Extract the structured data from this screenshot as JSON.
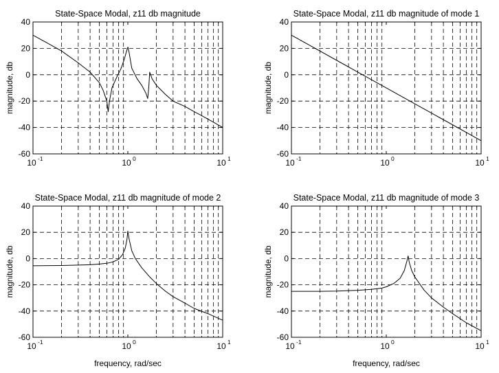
{
  "chart_data": [
    {
      "type": "line",
      "title": "State-Space Modal, z11 db magnitude",
      "xlabel": "",
      "ylabel": "magnitude, db",
      "xscale": "log",
      "xlim": [
        0.1,
        10
      ],
      "ylim": [
        -60,
        40
      ],
      "yticks": [
        -60,
        -40,
        -20,
        0,
        20,
        40
      ],
      "grid": true,
      "series": [
        {
          "x": [
            0.1,
            0.15,
            0.2,
            0.3,
            0.4,
            0.5,
            0.55,
            0.6,
            0.62,
            0.64,
            0.68,
            0.75,
            0.85,
            0.92,
            0.97,
            1.0,
            1.03,
            1.1,
            1.25,
            1.4,
            1.55,
            1.62,
            1.66,
            1.7,
            1.8,
            2.0,
            2.5,
            3,
            4,
            5,
            6,
            8,
            10
          ],
          "y": [
            30,
            23,
            18,
            9,
            2,
            -6,
            -12,
            -20,
            -28,
            -20,
            -10,
            -3,
            5,
            12,
            18,
            21,
            17,
            5,
            -3,
            -8,
            -14,
            -18,
            -10,
            2,
            -3,
            -8,
            -15,
            -20,
            -24,
            -28,
            -31,
            -36,
            -40
          ]
        }
      ]
    },
    {
      "type": "line",
      "title": "State-Space Modal, z11 db magnitude of mode 1",
      "xlabel": "",
      "ylabel": "magnitude, db",
      "xscale": "log",
      "xlim": [
        0.1,
        10
      ],
      "ylim": [
        -60,
        40
      ],
      "yticks": [
        -60,
        -40,
        -20,
        0,
        20,
        40
      ],
      "grid": true,
      "series": [
        {
          "x": [
            0.1,
            10
          ],
          "y": [
            30,
            -50
          ]
        }
      ]
    },
    {
      "type": "line",
      "title": "State-Space Modal, z11 db magnitude of mode 2",
      "xlabel": "frequency, rad/sec",
      "ylabel": "magnitude, db",
      "xscale": "log",
      "xlim": [
        0.1,
        10
      ],
      "ylim": [
        -60,
        40
      ],
      "yticks": [
        -60,
        -40,
        -20,
        0,
        20,
        40
      ],
      "grid": true,
      "series": [
        {
          "x": [
            0.1,
            0.2,
            0.3,
            0.4,
            0.5,
            0.6,
            0.7,
            0.8,
            0.88,
            0.94,
            0.98,
            1.0,
            1.03,
            1.1,
            1.2,
            1.4,
            1.7,
            2,
            2.5,
            3,
            4,
            5,
            7,
            10
          ],
          "y": [
            -5.5,
            -5.3,
            -5.0,
            -4.7,
            -4.2,
            -3.6,
            -2.5,
            -0.5,
            3,
            8,
            15,
            21,
            15,
            6,
            0,
            -7,
            -14,
            -19,
            -25,
            -29,
            -34,
            -38,
            -42,
            -47
          ]
        }
      ]
    },
    {
      "type": "line",
      "title": "State-Space Modal, z11 db magnitude of mode 3",
      "xlabel": "frequency, rad/sec",
      "ylabel": "magnitude, db",
      "xscale": "log",
      "xlim": [
        0.1,
        10
      ],
      "ylim": [
        -60,
        40
      ],
      "yticks": [
        -60,
        -40,
        -20,
        0,
        20,
        40
      ],
      "grid": true,
      "series": [
        {
          "x": [
            0.1,
            0.2,
            0.3,
            0.5,
            0.7,
            0.9,
            1.0,
            1.2,
            1.4,
            1.55,
            1.65,
            1.7,
            1.75,
            1.85,
            2.0,
            2.5,
            3,
            4,
            5,
            7,
            10
          ],
          "y": [
            -25,
            -25,
            -24.8,
            -24.2,
            -23.5,
            -22.5,
            -21.5,
            -19,
            -15,
            -9,
            -2,
            2,
            -3,
            -9,
            -14,
            -24,
            -30,
            -37,
            -42,
            -49,
            -55
          ]
        }
      ]
    }
  ]
}
